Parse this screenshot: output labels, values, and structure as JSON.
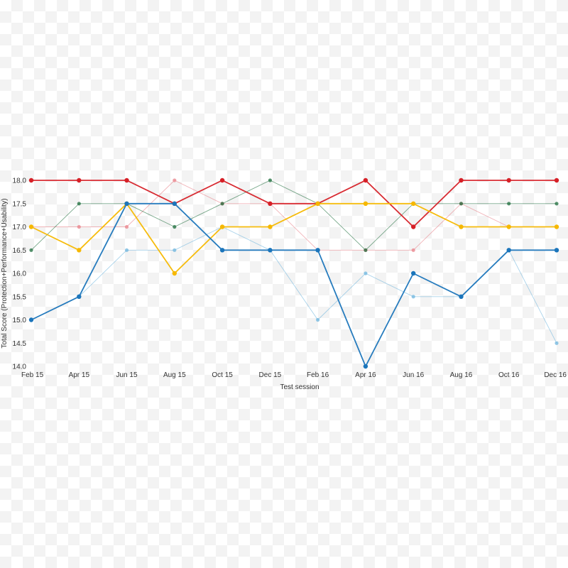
{
  "chart_data": {
    "type": "line",
    "xlabel": "Test session",
    "ylabel": "Total Score (Protection+Performance+Usability)",
    "categories": [
      "Feb 15",
      "Apr 15",
      "Jun 15",
      "Aug 15",
      "Oct 15",
      "Dec 15",
      "Feb 16",
      "Apr 16",
      "Jun 16",
      "Aug 16",
      "Oct 16",
      "Dec 16"
    ],
    "ylim": [
      14.0,
      18.0
    ],
    "yticks": [
      "18.0",
      "17.5",
      "17.0",
      "16.5",
      "16.0",
      "15.5",
      "15.0",
      "14.5",
      "14.0"
    ],
    "grid": false,
    "series": [
      {
        "color": "#d62027",
        "emphasis": "bold",
        "values": [
          18,
          18,
          18,
          17.5,
          18,
          17.5,
          17.5,
          18,
          17,
          18,
          18,
          18
        ]
      },
      {
        "color": "#e8828a",
        "emphasis": "faint",
        "values": [
          17,
          17,
          17,
          18,
          17.5,
          17.5,
          16.5,
          16.5,
          16.5,
          17.5,
          17,
          17
        ]
      },
      {
        "color": "#1e6e3c",
        "emphasis": "faint",
        "values": [
          16.5,
          17.5,
          17.5,
          17,
          17.5,
          18,
          17.5,
          16.5,
          17.5,
          17.5,
          17.5,
          17.5
        ]
      },
      {
        "color": "#f6b800",
        "emphasis": "bold",
        "values": [
          17,
          16.5,
          17.5,
          16,
          17,
          17,
          17.5,
          17.5,
          17.5,
          17,
          17,
          17
        ]
      },
      {
        "color": "#1b75bb",
        "emphasis": "bold",
        "values": [
          15,
          15.5,
          17.5,
          17.5,
          16.5,
          16.5,
          16.5,
          14,
          16,
          15.5,
          16.5,
          16.5
        ]
      },
      {
        "color": "#6fb6de",
        "emphasis": "faint",
        "values": [
          15,
          15.5,
          16.5,
          16.5,
          17,
          16.5,
          15,
          16,
          15.5,
          15.5,
          16.5,
          14.5
        ]
      }
    ]
  }
}
